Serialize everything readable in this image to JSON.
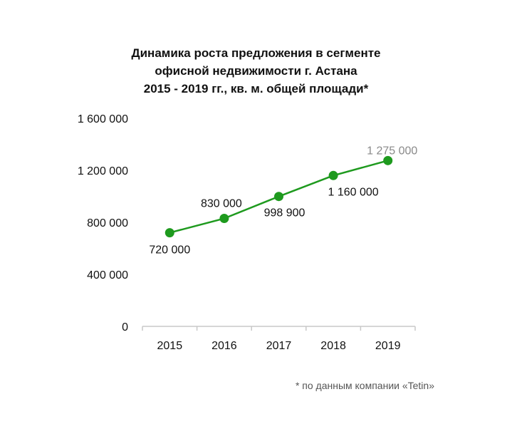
{
  "chart_data": {
    "type": "line",
    "title_lines": [
      "Динамика роста предложения в сегменте",
      "офисной недвижимости г. Астана",
      "2015 - 2019 гг., кв. м. общей площади*"
    ],
    "categories": [
      "2015",
      "2016",
      "2017",
      "2018",
      "2019"
    ],
    "series": [
      {
        "values": [
          720000,
          830000,
          998900,
          1160000,
          1275000
        ]
      }
    ],
    "data_labels": [
      "720 000",
      "830 000",
      "998 900",
      "1 160 000",
      "1 275 000"
    ],
    "y_ticks": [
      0,
      400000,
      800000,
      1200000,
      1600000
    ],
    "y_tick_labels": [
      "0",
      "400 000",
      "800 000",
      "1 200 000",
      "1 600 000"
    ],
    "ylim": [
      0,
      1600000
    ],
    "grid": false,
    "legend": "none",
    "colors": {
      "line": "#1e9a1e",
      "marker": "#1e9a1e",
      "label": "#111111",
      "label_last": "#8a8a8a",
      "axis": "#c8c8c8"
    }
  },
  "footnote": "* по данным компании «Tetin»"
}
